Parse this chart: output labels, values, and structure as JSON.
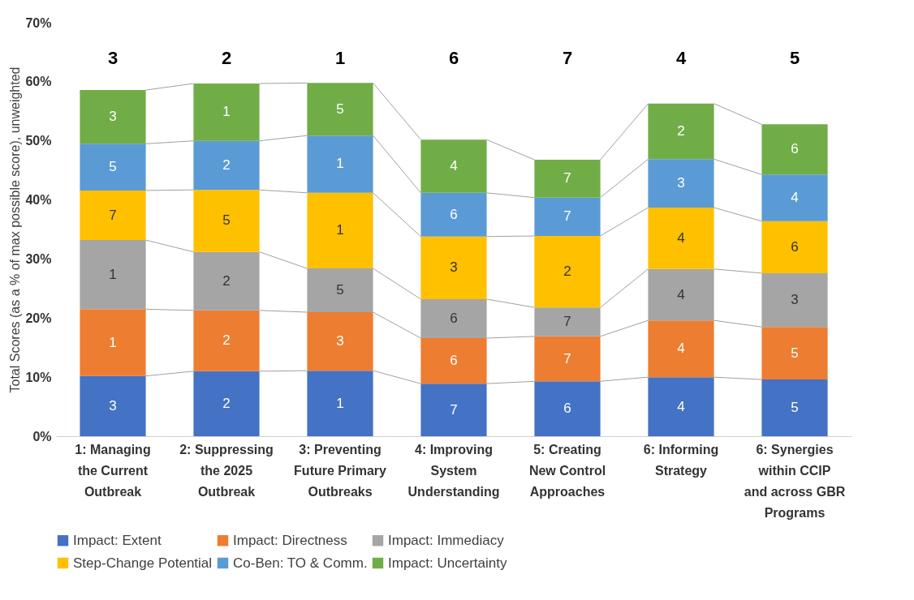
{
  "chart_data": {
    "type": "bar",
    "stacked": true,
    "ylabel": "Total Scores (as a % of max possible score), unweighted",
    "categories": [
      "1: Managing the Current Outbreak",
      "2: Suppressing the 2025 Outbreak",
      "3: Preventing Future Primary Outbreaks",
      "4: Improving System Understanding",
      "5: Creating New Control Approaches",
      "6: Informing Strategy",
      "6: Synergies within CCIP and across GBR Programs"
    ],
    "series": [
      {
        "name": "Impact: Extent",
        "color": "#4472c4",
        "values": [
          10.2,
          11.0,
          11.1,
          8.9,
          9.3,
          10.0,
          9.6
        ]
      },
      {
        "name": "Impact: Directness",
        "color": "#ed7d31",
        "values": [
          11.3,
          10.3,
          9.9,
          7.7,
          7.6,
          9.6,
          8.9
        ]
      },
      {
        "name": "Impact: Immediacy",
        "color": "#a5a5a5",
        "values": [
          11.7,
          9.9,
          7.4,
          6.6,
          4.9,
          8.7,
          9.1
        ]
      },
      {
        "name": "Step-Change Potential",
        "color": "#ffc000",
        "values": [
          8.4,
          10.5,
          12.8,
          10.6,
          12.1,
          10.4,
          8.8
        ]
      },
      {
        "name": "Co-Ben: TO & Comm.",
        "color": "#5b9bd5",
        "values": [
          7.9,
          8.3,
          9.7,
          7.4,
          6.5,
          8.2,
          7.9
        ]
      },
      {
        "name": "Impact: Uncertainty",
        "color": "#70ad47",
        "values": [
          9.1,
          9.7,
          8.9,
          9.0,
          6.4,
          9.4,
          8.5
        ]
      }
    ],
    "annotations": [
      "3",
      "1",
      "1",
      "7",
      "5",
      "3",
      "2",
      "2",
      "2",
      "5",
      "2",
      "1",
      "1",
      "3",
      "5",
      "1",
      "1",
      "5",
      "7",
      "6",
      "6",
      "3",
      "6",
      "4",
      "6",
      "7",
      "7",
      "2",
      "7",
      "7",
      "4",
      "4",
      "4",
      "4",
      "3",
      "2",
      "5",
      "5",
      "3",
      "6",
      "4",
      "6",
      "3",
      "2",
      "1",
      "6",
      "7",
      "4",
      "5"
    ],
    "ylim": [
      0,
      70
    ],
    "yticks": [
      {
        "value": 0,
        "label": "0%"
      },
      {
        "value": 10,
        "label": "10%"
      },
      {
        "value": 20,
        "label": "20%"
      },
      {
        "value": 30,
        "label": "30%"
      },
      {
        "value": 40,
        "label": "40%"
      },
      {
        "value": 50,
        "label": "50%"
      },
      {
        "value": 60,
        "label": "60%"
      },
      {
        "value": 70,
        "label": "70%"
      }
    ],
    "grid": false,
    "legend": "bottom"
  }
}
